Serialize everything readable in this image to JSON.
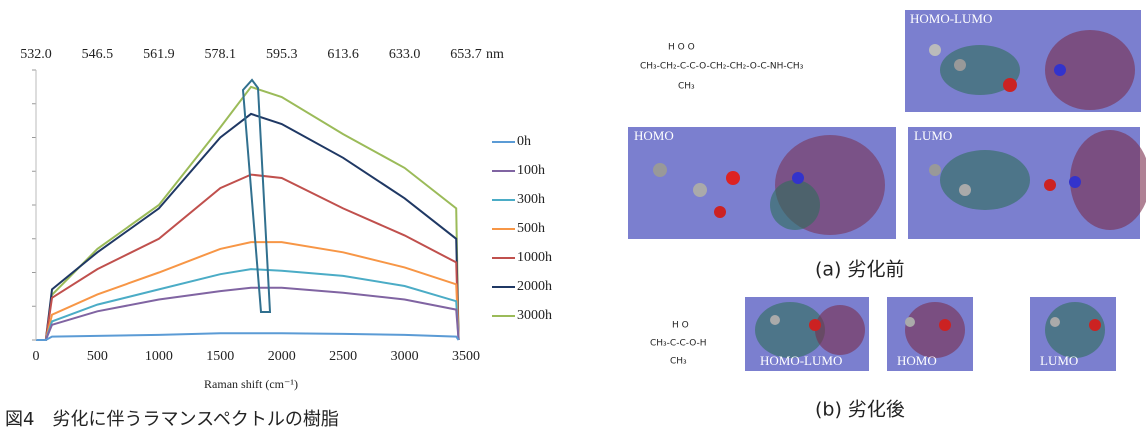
{
  "chart_data": {
    "type": "line",
    "x": [
      0,
      80,
      130,
      500,
      1000,
      1500,
      1750,
      2000,
      2500,
      3000,
      3420,
      3440
    ],
    "series": [
      {
        "name": "0h",
        "color": "#5b9bd5",
        "values": [
          0,
          0,
          0.1,
          0.12,
          0.15,
          0.2,
          0.2,
          0.2,
          0.18,
          0.15,
          0.1,
          0
        ]
      },
      {
        "name": "100h",
        "color": "#8064a2",
        "values": [
          0,
          0,
          0.45,
          0.85,
          1.2,
          1.45,
          1.55,
          1.55,
          1.4,
          1.2,
          0.9,
          0
        ]
      },
      {
        "name": "300h",
        "color": "#4bacc6",
        "values": [
          0,
          0,
          0.55,
          1.05,
          1.5,
          1.95,
          2.1,
          2.05,
          1.9,
          1.6,
          1.15,
          0
        ]
      },
      {
        "name": "500h",
        "color": "#f79646",
        "values": [
          0,
          0,
          0.75,
          1.35,
          2.0,
          2.7,
          2.9,
          2.9,
          2.6,
          2.15,
          1.65,
          0
        ]
      },
      {
        "name": "1000h",
        "color": "#c0504d",
        "values": [
          0,
          0,
          1.25,
          2.1,
          3.0,
          4.5,
          4.9,
          4.8,
          3.9,
          3.1,
          2.3,
          0
        ]
      },
      {
        "name": "2000h",
        "color": "#1f3864",
        "values": [
          0,
          0,
          1.5,
          2.6,
          3.9,
          6.0,
          6.7,
          6.4,
          5.4,
          4.2,
          3.0,
          0
        ]
      },
      {
        "name": "3000h",
        "color": "#9bbb59",
        "values": [
          0,
          0,
          1.34,
          2.7,
          4.0,
          6.3,
          7.5,
          7.2,
          6.1,
          5.1,
          3.9,
          0
        ]
      }
    ],
    "xlabel": "Raman shift (cm⁻¹)",
    "xlim": [
      0,
      3500
    ],
    "xticks": [
      0,
      500,
      1000,
      1500,
      2000,
      2500,
      3000,
      3500
    ],
    "x2label": "nm",
    "x2ticks": [
      {
        "value": 0,
        "label": "532.0"
      },
      {
        "value": 500,
        "label": "546.5"
      },
      {
        "value": 1000,
        "label": "561.9"
      },
      {
        "value": 1500,
        "label": "578.1"
      },
      {
        "value": 2000,
        "label": "595.3"
      },
      {
        "value": 2500,
        "label": "613.6"
      },
      {
        "value": 3000,
        "label": "633.0"
      },
      {
        "value": 3500,
        "label": "653.7"
      }
    ],
    "ylim": [
      0,
      8
    ],
    "yticks": [
      0,
      1,
      2,
      3,
      4,
      5,
      6,
      7,
      8
    ],
    "legend": "right"
  },
  "figure_caption": "図4　劣化に伴うラマンスペクトルの樹脂",
  "figure_a": {
    "caption": "(a) 劣化前",
    "panels": [
      "HOMO-LUMO",
      "HOMO",
      "LUMO"
    ],
    "formula": {
      "above": "H O                                      O",
      "main": "CH₃-CH₂-C-C-O-CH₂-CH₂-O-C-NH-CH₃",
      "below": "CH₃"
    }
  },
  "figure_b": {
    "caption": "(b) 劣化後",
    "panels": [
      "HOMO-LUMO",
      "HOMO",
      "LUMO"
    ],
    "formula": {
      "above": "H O",
      "main": "CH₃-C-C-O-H",
      "below": "CH₃"
    }
  }
}
